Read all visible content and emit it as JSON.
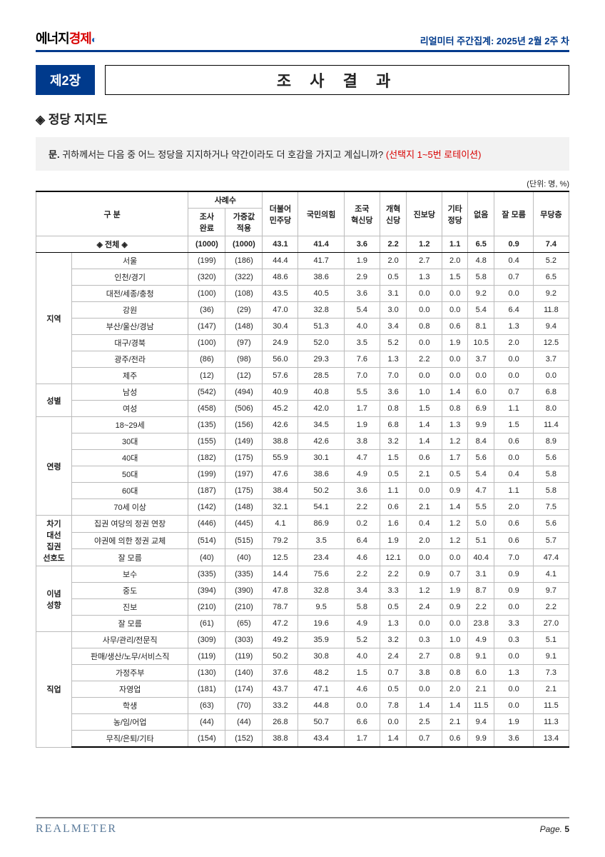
{
  "header": {
    "logo_part1": "에너지",
    "logo_part2": "경제",
    "right_text": "리얼미터 주간집계: 2025년 2월 2주 차"
  },
  "chapter": {
    "badge": "제2장",
    "title": "조 사 결 과"
  },
  "section_title": "정당 지지도",
  "question": {
    "label": "문.",
    "text": "귀하께서는 다음 중 어느 정당을 지지하거나 약간이라도 더 호감을 가지고 계십니까?",
    "rotation": "(선택지 1~5번 로테이션)"
  },
  "unit_note": "(단위: 명, %)",
  "table": {
    "header": {
      "gubun": "구 분",
      "sample": "사례수",
      "sample_sub": [
        "조사\n완료",
        "가중값\n적용"
      ],
      "parties": [
        "더불어\n민주당",
        "국민의힘",
        "조국\n혁신당",
        "개혁\n신당",
        "진보당",
        "기타\n정당",
        "없음",
        "잘 모름",
        "무당층"
      ]
    },
    "total": {
      "label": "◈ 전체 ◈",
      "cells": [
        "(1000)",
        "(1000)",
        "43.1",
        "41.4",
        "3.6",
        "2.2",
        "1.2",
        "1.1",
        "6.5",
        "0.9",
        "7.4"
      ]
    },
    "groups": [
      {
        "label": "지역",
        "rows": [
          {
            "label": "서울",
            "cells": [
              "(199)",
              "(186)",
              "44.4",
              "41.7",
              "1.9",
              "2.0",
              "2.7",
              "2.0",
              "4.8",
              "0.4",
              "5.2"
            ]
          },
          {
            "label": "인천/경기",
            "cells": [
              "(320)",
              "(322)",
              "48.6",
              "38.6",
              "2.9",
              "0.5",
              "1.3",
              "1.5",
              "5.8",
              "0.7",
              "6.5"
            ]
          },
          {
            "label": "대전/세종/충청",
            "cells": [
              "(100)",
              "(108)",
              "43.5",
              "40.5",
              "3.6",
              "3.1",
              "0.0",
              "0.0",
              "9.2",
              "0.0",
              "9.2"
            ]
          },
          {
            "label": "강원",
            "cells": [
              "(36)",
              "(29)",
              "47.0",
              "32.8",
              "5.4",
              "3.0",
              "0.0",
              "0.0",
              "5.4",
              "6.4",
              "11.8"
            ]
          },
          {
            "label": "부산/울산/경남",
            "cells": [
              "(147)",
              "(148)",
              "30.4",
              "51.3",
              "4.0",
              "3.4",
              "0.8",
              "0.6",
              "8.1",
              "1.3",
              "9.4"
            ]
          },
          {
            "label": "대구/경북",
            "cells": [
              "(100)",
              "(97)",
              "24.9",
              "52.0",
              "3.5",
              "5.2",
              "0.0",
              "1.9",
              "10.5",
              "2.0",
              "12.5"
            ]
          },
          {
            "label": "광주/전라",
            "cells": [
              "(86)",
              "(98)",
              "56.0",
              "29.3",
              "7.6",
              "1.3",
              "2.2",
              "0.0",
              "3.7",
              "0.0",
              "3.7"
            ]
          },
          {
            "label": "제주",
            "cells": [
              "(12)",
              "(12)",
              "57.6",
              "28.5",
              "7.0",
              "7.0",
              "0.0",
              "0.0",
              "0.0",
              "0.0",
              "0.0"
            ]
          }
        ]
      },
      {
        "label": "성별",
        "rows": [
          {
            "label": "남성",
            "cells": [
              "(542)",
              "(494)",
              "40.9",
              "40.8",
              "5.5",
              "3.6",
              "1.0",
              "1.4",
              "6.0",
              "0.7",
              "6.8"
            ]
          },
          {
            "label": "여성",
            "cells": [
              "(458)",
              "(506)",
              "45.2",
              "42.0",
              "1.7",
              "0.8",
              "1.5",
              "0.8",
              "6.9",
              "1.1",
              "8.0"
            ]
          }
        ]
      },
      {
        "label": "연령",
        "rows": [
          {
            "label": "18~29세",
            "cells": [
              "(135)",
              "(156)",
              "42.6",
              "34.5",
              "1.9",
              "6.8",
              "1.4",
              "1.3",
              "9.9",
              "1.5",
              "11.4"
            ]
          },
          {
            "label": "30대",
            "cells": [
              "(155)",
              "(149)",
              "38.8",
              "42.6",
              "3.8",
              "3.2",
              "1.4",
              "1.2",
              "8.4",
              "0.6",
              "8.9"
            ]
          },
          {
            "label": "40대",
            "cells": [
              "(182)",
              "(175)",
              "55.9",
              "30.1",
              "4.7",
              "1.5",
              "0.6",
              "1.7",
              "5.6",
              "0.0",
              "5.6"
            ]
          },
          {
            "label": "50대",
            "cells": [
              "(199)",
              "(197)",
              "47.6",
              "38.6",
              "4.9",
              "0.5",
              "2.1",
              "0.5",
              "5.4",
              "0.4",
              "5.8"
            ]
          },
          {
            "label": "60대",
            "cells": [
              "(187)",
              "(175)",
              "38.4",
              "50.2",
              "3.6",
              "1.1",
              "0.0",
              "0.9",
              "4.7",
              "1.1",
              "5.8"
            ]
          },
          {
            "label": "70세 이상",
            "cells": [
              "(142)",
              "(148)",
              "32.1",
              "54.1",
              "2.2",
              "0.6",
              "2.1",
              "1.4",
              "5.5",
              "2.0",
              "7.5"
            ]
          }
        ]
      },
      {
        "label": "차기\n대선\n집권\n선호도",
        "rows": [
          {
            "label": "집권 여당의 정권 연장",
            "cells": [
              "(446)",
              "(445)",
              "4.1",
              "86.9",
              "0.2",
              "1.6",
              "0.4",
              "1.2",
              "5.0",
              "0.6",
              "5.6"
            ]
          },
          {
            "label": "야권에 의한 정권 교체",
            "cells": [
              "(514)",
              "(515)",
              "79.2",
              "3.5",
              "6.4",
              "1.9",
              "2.0",
              "1.2",
              "5.1",
              "0.6",
              "5.7"
            ]
          },
          {
            "label": "잘 모름",
            "cells": [
              "(40)",
              "(40)",
              "12.5",
              "23.4",
              "4.6",
              "12.1",
              "0.0",
              "0.0",
              "40.4",
              "7.0",
              "47.4"
            ]
          }
        ]
      },
      {
        "label": "이념\n성향",
        "rows": [
          {
            "label": "보수",
            "cells": [
              "(335)",
              "(335)",
              "14.4",
              "75.6",
              "2.2",
              "2.2",
              "0.9",
              "0.7",
              "3.1",
              "0.9",
              "4.1"
            ]
          },
          {
            "label": "중도",
            "cells": [
              "(394)",
              "(390)",
              "47.8",
              "32.8",
              "3.4",
              "3.3",
              "1.2",
              "1.9",
              "8.7",
              "0.9",
              "9.7"
            ]
          },
          {
            "label": "진보",
            "cells": [
              "(210)",
              "(210)",
              "78.7",
              "9.5",
              "5.8",
              "0.5",
              "2.4",
              "0.9",
              "2.2",
              "0.0",
              "2.2"
            ]
          },
          {
            "label": "잘 모름",
            "cells": [
              "(61)",
              "(65)",
              "47.2",
              "19.6",
              "4.9",
              "1.3",
              "0.0",
              "0.0",
              "23.8",
              "3.3",
              "27.0"
            ]
          }
        ]
      },
      {
        "label": "직업",
        "rows": [
          {
            "label": "사무/관리/전문직",
            "cells": [
              "(309)",
              "(303)",
              "49.2",
              "35.9",
              "5.2",
              "3.2",
              "0.3",
              "1.0",
              "4.9",
              "0.3",
              "5.1"
            ]
          },
          {
            "label": "판매/생산/노무/서비스직",
            "cells": [
              "(119)",
              "(119)",
              "50.2",
              "30.8",
              "4.0",
              "2.4",
              "2.7",
              "0.8",
              "9.1",
              "0.0",
              "9.1"
            ]
          },
          {
            "label": "가정주부",
            "cells": [
              "(130)",
              "(140)",
              "37.6",
              "48.2",
              "1.5",
              "0.7",
              "3.8",
              "0.8",
              "6.0",
              "1.3",
              "7.3"
            ]
          },
          {
            "label": "자영업",
            "cells": [
              "(181)",
              "(174)",
              "43.7",
              "47.1",
              "4.6",
              "0.5",
              "0.0",
              "2.0",
              "2.1",
              "0.0",
              "2.1"
            ]
          },
          {
            "label": "학생",
            "cells": [
              "(63)",
              "(70)",
              "33.2",
              "44.8",
              "0.0",
              "7.8",
              "1.4",
              "1.4",
              "11.5",
              "0.0",
              "11.5"
            ]
          },
          {
            "label": "농/임/어업",
            "cells": [
              "(44)",
              "(44)",
              "26.8",
              "50.7",
              "6.6",
              "0.0",
              "2.5",
              "2.1",
              "9.4",
              "1.9",
              "11.3"
            ]
          },
          {
            "label": "무직/은퇴/기타",
            "cells": [
              "(154)",
              "(152)",
              "38.8",
              "43.4",
              "1.7",
              "1.4",
              "0.7",
              "0.6",
              "9.9",
              "3.6",
              "13.4"
            ]
          }
        ]
      }
    ]
  },
  "footer": {
    "logo": "REALMETER",
    "page_label": "Page.",
    "page_num": "5"
  }
}
